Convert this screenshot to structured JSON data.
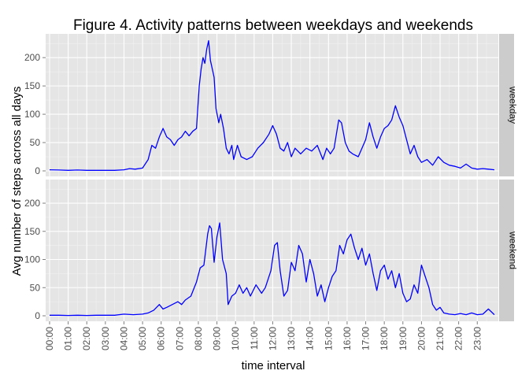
{
  "chart_data": {
    "type": "line",
    "title": "Figure 4. Activity patterns between weekdays and weekends",
    "xlabel": "time interval",
    "ylabel": "Avg number of steps across all days",
    "ylim": [
      0,
      235
    ],
    "yticks": [
      0,
      50,
      100,
      150,
      200
    ],
    "x_unit": "5-minute interval (hours since 00:00)",
    "xlim": [
      0,
      23.92
    ],
    "xticks": [
      "00:00",
      "01:00",
      "02:00",
      "03:00",
      "04:00",
      "05:00",
      "06:00",
      "07:00",
      "08:00",
      "09:00",
      "10:00",
      "11:00",
      "12:00",
      "13:00",
      "14:00",
      "15:00",
      "16:00",
      "17:00",
      "18:00",
      "19:00",
      "20:00",
      "21:00",
      "22:00",
      "23:00"
    ],
    "grid": true,
    "background": "#e5e5e5",
    "line_color": "#0000ff",
    "facets": [
      {
        "label": "weekday",
        "points": [
          [
            0,
            2
          ],
          [
            0.5,
            1.5
          ],
          [
            1,
            1
          ],
          [
            1.5,
            1.5
          ],
          [
            2,
            1
          ],
          [
            2.5,
            1
          ],
          [
            3,
            1
          ],
          [
            3.5,
            1
          ],
          [
            4,
            2
          ],
          [
            4.3,
            4
          ],
          [
            4.6,
            3
          ],
          [
            5,
            5
          ],
          [
            5.3,
            20
          ],
          [
            5.5,
            45
          ],
          [
            5.7,
            40
          ],
          [
            5.9,
            60
          ],
          [
            6.1,
            75
          ],
          [
            6.3,
            60
          ],
          [
            6.5,
            55
          ],
          [
            6.7,
            45
          ],
          [
            6.9,
            55
          ],
          [
            7.1,
            60
          ],
          [
            7.3,
            70
          ],
          [
            7.5,
            62
          ],
          [
            7.7,
            70
          ],
          [
            7.9,
            75
          ],
          [
            8.05,
            150
          ],
          [
            8.15,
            180
          ],
          [
            8.25,
            200
          ],
          [
            8.35,
            190
          ],
          [
            8.45,
            215
          ],
          [
            8.55,
            230
          ],
          [
            8.65,
            195
          ],
          [
            8.75,
            180
          ],
          [
            8.85,
            165
          ],
          [
            8.95,
            110
          ],
          [
            9.1,
            85
          ],
          [
            9.2,
            100
          ],
          [
            9.35,
            75
          ],
          [
            9.5,
            40
          ],
          [
            9.65,
            30
          ],
          [
            9.8,
            45
          ],
          [
            9.9,
            20
          ],
          [
            10.1,
            45
          ],
          [
            10.3,
            25
          ],
          [
            10.6,
            20
          ],
          [
            10.9,
            25
          ],
          [
            11.2,
            40
          ],
          [
            11.5,
            50
          ],
          [
            11.8,
            65
          ],
          [
            12.0,
            80
          ],
          [
            12.2,
            65
          ],
          [
            12.4,
            40
          ],
          [
            12.6,
            35
          ],
          [
            12.8,
            50
          ],
          [
            13.0,
            25
          ],
          [
            13.2,
            40
          ],
          [
            13.5,
            30
          ],
          [
            13.8,
            40
          ],
          [
            14.1,
            35
          ],
          [
            14.4,
            45
          ],
          [
            14.7,
            20
          ],
          [
            14.9,
            40
          ],
          [
            15.1,
            30
          ],
          [
            15.3,
            40
          ],
          [
            15.55,
            90
          ],
          [
            15.7,
            85
          ],
          [
            15.9,
            50
          ],
          [
            16.1,
            35
          ],
          [
            16.3,
            30
          ],
          [
            16.6,
            25
          ],
          [
            16.8,
            40
          ],
          [
            17.0,
            55
          ],
          [
            17.2,
            85
          ],
          [
            17.4,
            60
          ],
          [
            17.6,
            40
          ],
          [
            17.8,
            60
          ],
          [
            18.0,
            75
          ],
          [
            18.2,
            80
          ],
          [
            18.4,
            90
          ],
          [
            18.6,
            115
          ],
          [
            18.8,
            95
          ],
          [
            19.0,
            80
          ],
          [
            19.2,
            55
          ],
          [
            19.4,
            30
          ],
          [
            19.6,
            45
          ],
          [
            19.8,
            25
          ],
          [
            20.0,
            15
          ],
          [
            20.3,
            20
          ],
          [
            20.6,
            10
          ],
          [
            20.9,
            25
          ],
          [
            21.2,
            15
          ],
          [
            21.5,
            10
          ],
          [
            21.8,
            8
          ],
          [
            22.1,
            5
          ],
          [
            22.4,
            12
          ],
          [
            22.7,
            5
          ],
          [
            23.0,
            3
          ],
          [
            23.3,
            4
          ],
          [
            23.6,
            3
          ],
          [
            23.92,
            2
          ]
        ]
      },
      {
        "label": "weekend",
        "points": [
          [
            0,
            1
          ],
          [
            0.5,
            1
          ],
          [
            1,
            0.5
          ],
          [
            1.5,
            1
          ],
          [
            2,
            0.5
          ],
          [
            2.5,
            1
          ],
          [
            3,
            1
          ],
          [
            3.5,
            1
          ],
          [
            4,
            3
          ],
          [
            4.5,
            2
          ],
          [
            5,
            3
          ],
          [
            5.3,
            5
          ],
          [
            5.6,
            10
          ],
          [
            5.9,
            20
          ],
          [
            6.1,
            12
          ],
          [
            6.3,
            15
          ],
          [
            6.6,
            20
          ],
          [
            6.9,
            25
          ],
          [
            7.1,
            20
          ],
          [
            7.3,
            28
          ],
          [
            7.6,
            35
          ],
          [
            7.9,
            60
          ],
          [
            8.1,
            85
          ],
          [
            8.3,
            90
          ],
          [
            8.5,
            145
          ],
          [
            8.6,
            160
          ],
          [
            8.7,
            155
          ],
          [
            8.85,
            95
          ],
          [
            9.0,
            140
          ],
          [
            9.15,
            165
          ],
          [
            9.3,
            100
          ],
          [
            9.5,
            75
          ],
          [
            9.6,
            20
          ],
          [
            9.8,
            35
          ],
          [
            10.0,
            40
          ],
          [
            10.2,
            55
          ],
          [
            10.4,
            40
          ],
          [
            10.6,
            50
          ],
          [
            10.8,
            35
          ],
          [
            11.1,
            55
          ],
          [
            11.4,
            40
          ],
          [
            11.6,
            50
          ],
          [
            11.9,
            80
          ],
          [
            12.1,
            125
          ],
          [
            12.25,
            130
          ],
          [
            12.4,
            80
          ],
          [
            12.6,
            35
          ],
          [
            12.8,
            45
          ],
          [
            13.0,
            95
          ],
          [
            13.2,
            80
          ],
          [
            13.4,
            125
          ],
          [
            13.6,
            110
          ],
          [
            13.8,
            60
          ],
          [
            14.0,
            100
          ],
          [
            14.2,
            75
          ],
          [
            14.4,
            35
          ],
          [
            14.6,
            55
          ],
          [
            14.8,
            25
          ],
          [
            15.0,
            50
          ],
          [
            15.2,
            70
          ],
          [
            15.4,
            80
          ],
          [
            15.6,
            125
          ],
          [
            15.8,
            110
          ],
          [
            16.0,
            135
          ],
          [
            16.2,
            145
          ],
          [
            16.4,
            120
          ],
          [
            16.6,
            100
          ],
          [
            16.8,
            120
          ],
          [
            17.0,
            90
          ],
          [
            17.2,
            110
          ],
          [
            17.4,
            75
          ],
          [
            17.6,
            45
          ],
          [
            17.8,
            80
          ],
          [
            18.0,
            90
          ],
          [
            18.2,
            65
          ],
          [
            18.4,
            80
          ],
          [
            18.6,
            50
          ],
          [
            18.8,
            75
          ],
          [
            19.0,
            40
          ],
          [
            19.2,
            25
          ],
          [
            19.4,
            30
          ],
          [
            19.6,
            55
          ],
          [
            19.8,
            40
          ],
          [
            20.0,
            90
          ],
          [
            20.2,
            70
          ],
          [
            20.4,
            50
          ],
          [
            20.6,
            20
          ],
          [
            20.8,
            10
          ],
          [
            21.0,
            15
          ],
          [
            21.2,
            5
          ],
          [
            21.5,
            3
          ],
          [
            21.8,
            2
          ],
          [
            22.1,
            4
          ],
          [
            22.4,
            2
          ],
          [
            22.7,
            5
          ],
          [
            23.0,
            2
          ],
          [
            23.3,
            3
          ],
          [
            23.6,
            12
          ],
          [
            23.92,
            2
          ]
        ]
      }
    ]
  }
}
